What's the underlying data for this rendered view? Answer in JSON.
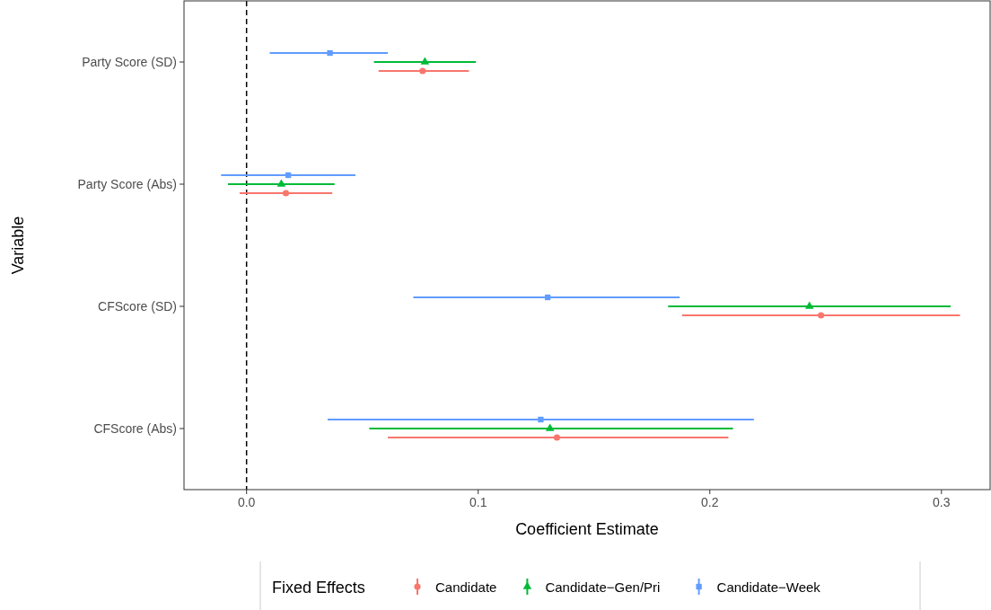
{
  "chart_data": {
    "type": "scatter",
    "orientation": "horizontal",
    "xlabel": "Coefficient Estimate",
    "ylabel": "Variable",
    "legend_title": "Fixed Effects",
    "legend": "bottom",
    "grid": false,
    "categories": [
      "Party Score (SD)",
      "Party Score (Abs)",
      "CFScore (SD)",
      "CFScore (Abs)"
    ],
    "xlim": [
      -0.027,
      0.321
    ],
    "xticks": [
      {
        "value": 0,
        "label": "0.0"
      },
      0.1,
      0.2,
      0.3
    ],
    "ref_lines": [
      {
        "axis": "x",
        "value": 0,
        "line_style": "dashed",
        "color": "#000000"
      }
    ],
    "series": [
      {
        "name": "Candidate",
        "color": "#f8766d",
        "marker": "circle",
        "values": [
          0.076,
          0.017,
          0.248,
          0.134
        ],
        "errors": [
          [
            0.057,
            0.096
          ],
          [
            -0.003,
            0.037
          ],
          [
            0.188,
            0.308
          ],
          [
            0.061,
            0.208
          ]
        ]
      },
      {
        "name": "Candidate−Gen/Pri",
        "color": "#00ba38",
        "marker": "triangle",
        "values": [
          0.077,
          0.015,
          0.243,
          0.131
        ],
        "errors": [
          [
            0.055,
            0.099
          ],
          [
            -0.008,
            0.038
          ],
          [
            0.182,
            0.304
          ],
          [
            0.053,
            0.21
          ]
        ]
      },
      {
        "name": "Candidate−Week",
        "color": "#619cff",
        "marker": "square",
        "values": [
          0.036,
          0.018,
          0.13,
          0.127
        ],
        "errors": [
          [
            0.01,
            0.061
          ],
          [
            -0.011,
            0.047
          ],
          [
            0.072,
            0.187
          ],
          [
            0.035,
            0.219
          ]
        ]
      }
    ]
  }
}
